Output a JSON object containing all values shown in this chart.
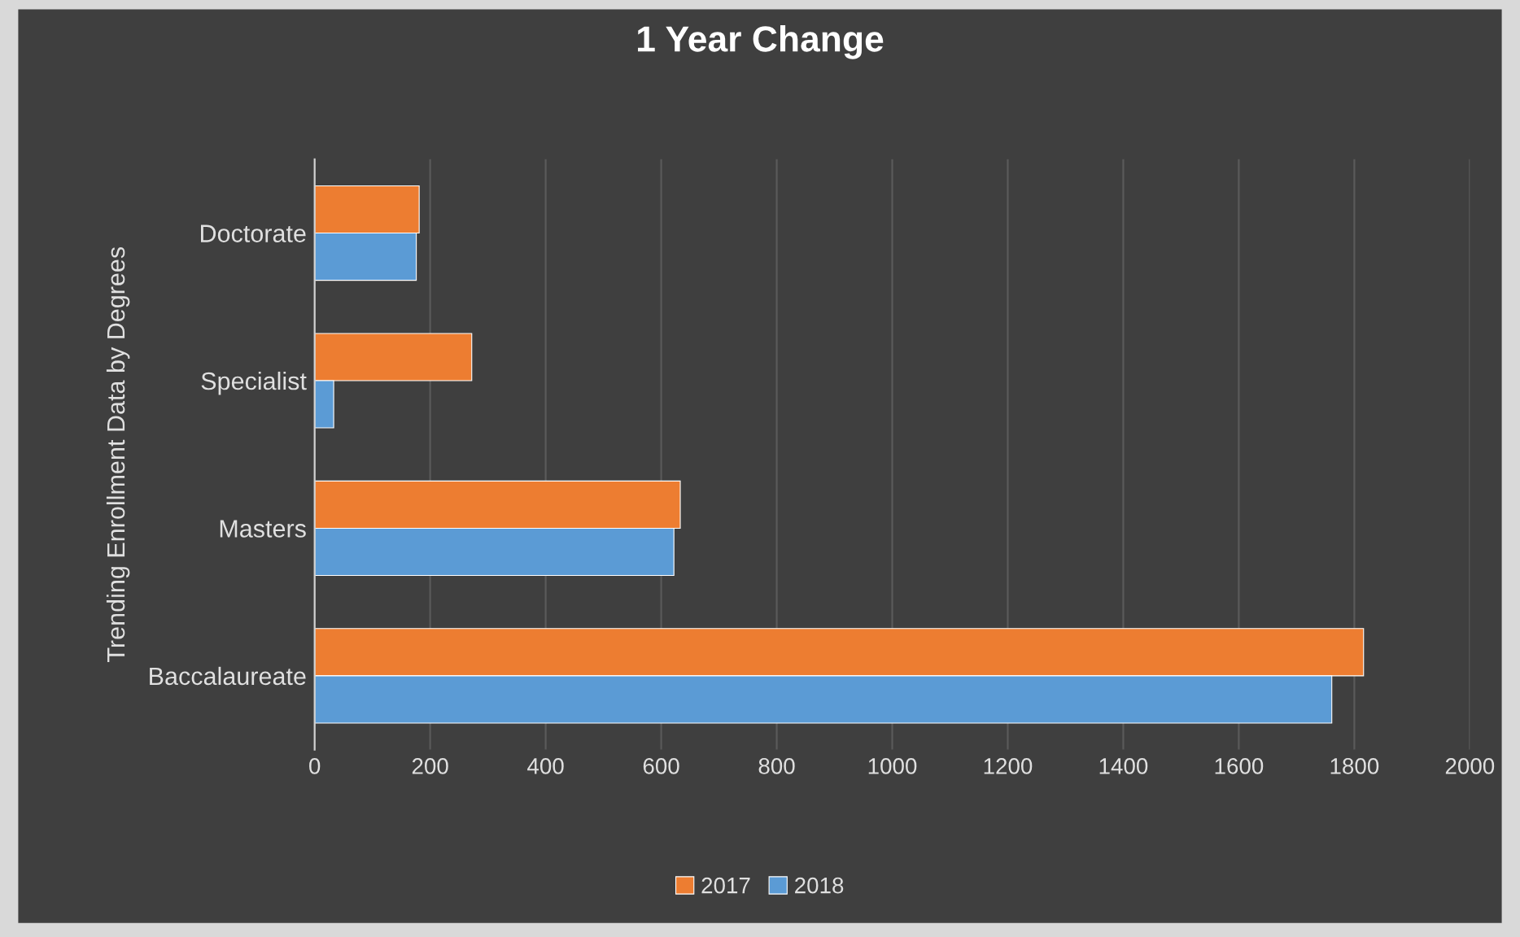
{
  "chart_data": {
    "type": "bar",
    "orientation": "horizontal",
    "title": "1 Year Change",
    "ylabel": "Trending Enrollment Data by Degrees",
    "categories": [
      "Doctorate",
      "Specialist",
      "Masters",
      "Baccalaureate"
    ],
    "series": [
      {
        "name": "2017",
        "color": "#ed7d31",
        "values": [
          181,
          272,
          633,
          1816
        ]
      },
      {
        "name": "2018",
        "color": "#5b9bd5",
        "values": [
          176,
          33,
          622,
          1761
        ]
      }
    ],
    "xlim": [
      0,
      2000
    ],
    "xticks": [
      0,
      200,
      400,
      600,
      800,
      1000,
      1200,
      1400,
      1600,
      1800,
      2000
    ],
    "grid": "x",
    "legend": "bottom"
  }
}
